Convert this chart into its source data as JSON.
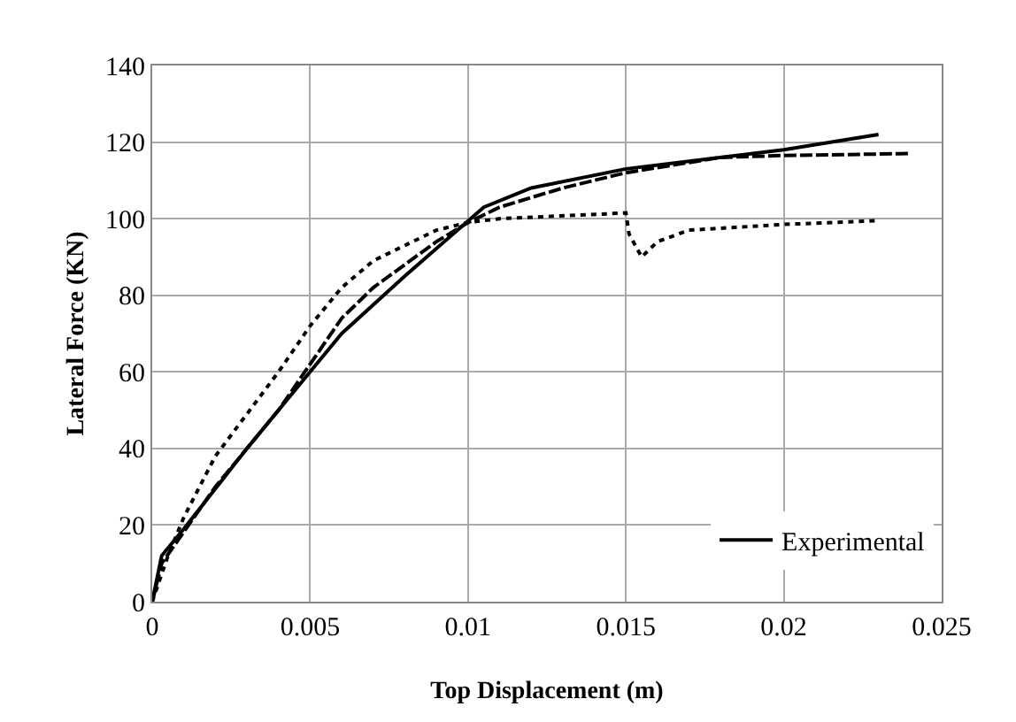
{
  "chart_data": {
    "type": "line",
    "xlabel": "Top Displacement (m)",
    "ylabel": "Lateral Force (KN)",
    "xlim": [
      0,
      0.025
    ],
    "xticks": [
      0,
      0.005,
      0.01,
      0.015,
      0.02,
      0.025
    ],
    "ylim": [
      0,
      140
    ],
    "yticks": [
      0,
      20,
      40,
      60,
      80,
      100,
      120,
      140
    ],
    "grid": true,
    "legend": "bottom right",
    "marker": "none",
    "series": [
      {
        "name": "Experimental",
        "color": "#000000",
        "line_style": "solid",
        "x": [
          0,
          0.0003,
          0.001,
          0.003,
          0.005,
          0.006,
          0.008,
          0.0105,
          0.012,
          0.015,
          0.02,
          0.023
        ],
        "values": [
          0,
          12,
          19,
          40,
          60,
          70,
          85,
          103,
          108,
          113,
          118,
          122
        ]
      },
      {
        "color": "#000000",
        "line_style": "dashed",
        "x": [
          0,
          0.0003,
          0.002,
          0.004,
          0.005,
          0.006,
          0.007,
          0.009,
          0.01,
          0.011,
          0.013,
          0.015,
          0.018,
          0.02,
          0.024
        ],
        "values": [
          0,
          10,
          30,
          50,
          62,
          74,
          82,
          94,
          99,
          103,
          108,
          112,
          116,
          116.5,
          117
        ]
      },
      {
        "color": "#000000",
        "line_style": "dotted",
        "x": [
          0,
          0.0005,
          0.001,
          0.002,
          0.004,
          0.005,
          0.006,
          0.007,
          0.008,
          0.009,
          0.01,
          0.011,
          0.015,
          0.0151,
          0.0155,
          0.016,
          0.017,
          0.02,
          0.023
        ],
        "values": [
          0,
          12,
          22,
          38,
          60,
          72,
          82,
          89,
          93,
          97,
          99,
          100,
          101.5,
          96,
          90,
          94,
          97,
          98.5,
          99.5
        ]
      }
    ]
  }
}
